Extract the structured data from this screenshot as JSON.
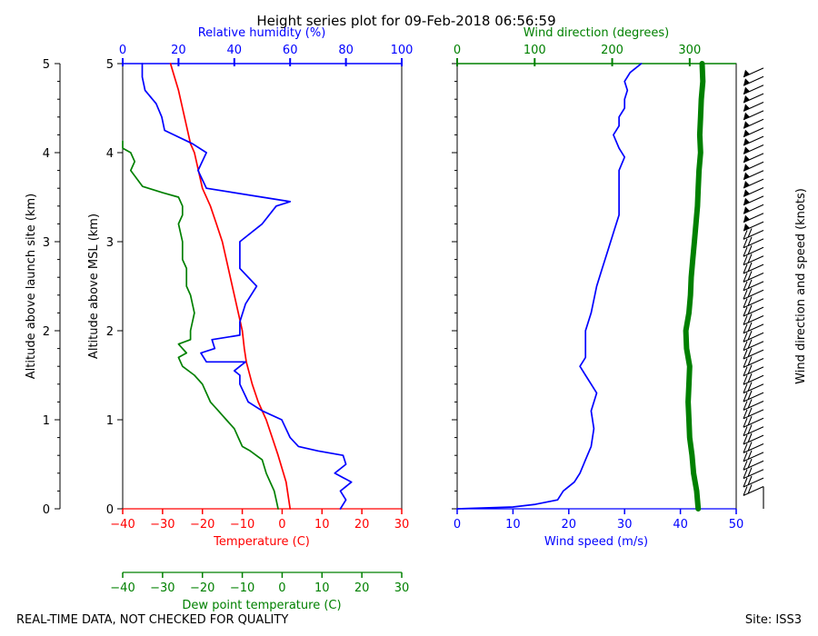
{
  "chart_data": [
    {
      "type": "line",
      "title": "Height series plot for 09-Feb-2018 06:56:59",
      "ylabel_left": "Altitude above launch site (km)",
      "ylabel": "Altitude above MSL (km)",
      "ylim": [
        0,
        5
      ],
      "yticks": [
        "0",
        "1",
        "2",
        "3",
        "4",
        "5"
      ],
      "axes": {
        "temperature": {
          "label": "Temperature (C)",
          "range": [
            -40,
            30
          ],
          "ticks": [
            "−40",
            "−30",
            "−20",
            "−10",
            "0",
            "10",
            "20",
            "30"
          ],
          "color": "#ff0000"
        },
        "dewpoint": {
          "label": "Dew point temperature (C)",
          "range": [
            -40,
            30
          ],
          "ticks": [
            "−40",
            "−30",
            "−20",
            "−10",
            "0",
            "10",
            "20",
            "30"
          ],
          "color": "#008000"
        },
        "rh": {
          "label": "Relative humidity (%)",
          "range": [
            0,
            100
          ],
          "ticks": [
            "0",
            "20",
            "40",
            "60",
            "80",
            "100"
          ],
          "color": "#0000ff"
        }
      },
      "series": [
        {
          "name": "Temperature",
          "axis": "temperature",
          "color": "#ff0000",
          "points": [
            [
              2,
              0
            ],
            [
              1,
              0.3
            ],
            [
              -1,
              0.6
            ],
            [
              -2.5,
              0.8
            ],
            [
              -4,
              1.0
            ],
            [
              -6,
              1.2
            ],
            [
              -7.5,
              1.4
            ],
            [
              -9,
              1.65
            ],
            [
              -9.5,
              1.8
            ],
            [
              -10,
              2.0
            ],
            [
              -11,
              2.2
            ],
            [
              -12,
              2.4
            ],
            [
              -13,
              2.6
            ],
            [
              -14,
              2.8
            ],
            [
              -15,
              3.0
            ],
            [
              -16.5,
              3.2
            ],
            [
              -18,
              3.4
            ],
            [
              -20,
              3.6
            ],
            [
              -21,
              3.8
            ],
            [
              -22,
              4.0
            ],
            [
              -23,
              4.1
            ],
            [
              -24,
              4.3
            ],
            [
              -25,
              4.5
            ],
            [
              -26,
              4.7
            ],
            [
              -27,
              4.85
            ],
            [
              -28,
              5.0
            ]
          ]
        },
        {
          "name": "Dew point",
          "axis": "dewpoint",
          "color": "#008000",
          "points": [
            [
              -1,
              0
            ],
            [
              -1.5,
              0.1
            ],
            [
              -2,
              0.2
            ],
            [
              -3,
              0.3
            ],
            [
              -4,
              0.4
            ],
            [
              -5,
              0.55
            ],
            [
              -8,
              0.65
            ],
            [
              -10,
              0.7
            ],
            [
              -11,
              0.8
            ],
            [
              -12,
              0.9
            ],
            [
              -14,
              1.0
            ],
            [
              -16,
              1.1
            ],
            [
              -18,
              1.2
            ],
            [
              -19,
              1.3
            ],
            [
              -20,
              1.4
            ],
            [
              -22,
              1.5
            ],
            [
              -25,
              1.6
            ],
            [
              -26,
              1.7
            ],
            [
              -24,
              1.75
            ],
            [
              -26,
              1.85
            ],
            [
              -23,
              1.9
            ],
            [
              -23,
              2.0
            ],
            [
              -22,
              2.2
            ],
            [
              -23,
              2.4
            ],
            [
              -24,
              2.5
            ],
            [
              -24,
              2.7
            ],
            [
              -25,
              2.8
            ],
            [
              -25,
              3.0
            ],
            [
              -26,
              3.2
            ],
            [
              -25,
              3.3
            ],
            [
              -25,
              3.4
            ],
            [
              -26,
              3.5
            ],
            [
              -30,
              3.55
            ],
            [
              -35,
              3.62
            ],
            [
              -38,
              3.8
            ],
            [
              -37,
              3.9
            ],
            [
              -38,
              4.0
            ],
            [
              -40,
              4.05
            ],
            [
              -40,
              4.13
            ]
          ]
        },
        {
          "name": "Relative humidity",
          "axis": "rh",
          "color": "#0000ff",
          "points": [
            [
              78,
              0
            ],
            [
              80,
              0.1
            ],
            [
              78,
              0.2
            ],
            [
              82,
              0.3
            ],
            [
              79,
              0.35
            ],
            [
              76,
              0.4
            ],
            [
              80,
              0.5
            ],
            [
              79,
              0.6
            ],
            [
              70,
              0.65
            ],
            [
              63,
              0.7
            ],
            [
              60,
              0.8
            ],
            [
              57,
              1.0
            ],
            [
              50,
              1.1
            ],
            [
              45,
              1.2
            ],
            [
              42,
              1.4
            ],
            [
              42,
              1.5
            ],
            [
              40,
              1.55
            ],
            [
              44,
              1.65
            ],
            [
              30,
              1.65
            ],
            [
              28,
              1.75
            ],
            [
              33,
              1.8
            ],
            [
              32,
              1.9
            ],
            [
              42,
              1.95
            ],
            [
              42,
              2.1
            ],
            [
              44,
              2.3
            ],
            [
              48,
              2.5
            ],
            [
              42,
              2.7
            ],
            [
              42,
              3.0
            ],
            [
              50,
              3.2
            ],
            [
              55,
              3.4
            ],
            [
              60,
              3.45
            ],
            [
              50,
              3.5
            ],
            [
              30,
              3.6
            ],
            [
              27,
              3.8
            ],
            [
              30,
              4.0
            ],
            [
              25,
              4.1
            ],
            [
              15,
              4.25
            ],
            [
              14,
              4.4
            ],
            [
              12,
              4.55
            ],
            [
              8,
              4.7
            ],
            [
              7,
              4.85
            ],
            [
              7,
              5.0
            ]
          ]
        }
      ]
    },
    {
      "type": "line",
      "xlabel_bottom": "Wind speed (m/s)",
      "xlabel_top": "Wind direction (degrees)",
      "ylabel_right": "Wind direction and speed (knots)",
      "ylim": [
        0,
        5
      ],
      "axes": {
        "speed": {
          "label": "Wind speed (m/s)",
          "range": [
            0,
            50
          ],
          "ticks": [
            "0",
            "10",
            "20",
            "30",
            "40",
            "50"
          ],
          "color": "#0000ff"
        },
        "direction": {
          "label": "Wind direction (degrees)",
          "range": [
            0,
            360
          ],
          "ticks": [
            "0",
            "100",
            "200",
            "300"
          ],
          "color": "#008000"
        }
      },
      "series": [
        {
          "name": "Wind speed",
          "axis": "speed",
          "color": "#0000ff",
          "points": [
            [
              0,
              0
            ],
            [
              10,
              0.02
            ],
            [
              14,
              0.05
            ],
            [
              18,
              0.1
            ],
            [
              19,
              0.2
            ],
            [
              21,
              0.3
            ],
            [
              22,
              0.4
            ],
            [
              23,
              0.55
            ],
            [
              24,
              0.7
            ],
            [
              24.5,
              0.9
            ],
            [
              24,
              1.1
            ],
            [
              25,
              1.3
            ],
            [
              24,
              1.4
            ],
            [
              23,
              1.5
            ],
            [
              22,
              1.6
            ],
            [
              23,
              1.7
            ],
            [
              23,
              2.0
            ],
            [
              24,
              2.2
            ],
            [
              25,
              2.5
            ],
            [
              26,
              2.7
            ],
            [
              27,
              2.9
            ],
            [
              28,
              3.1
            ],
            [
              29,
              3.3
            ],
            [
              29,
              3.6
            ],
            [
              29,
              3.8
            ],
            [
              30,
              3.95
            ],
            [
              29,
              4.05
            ],
            [
              28,
              4.2
            ],
            [
              29,
              4.3
            ],
            [
              29,
              4.4
            ],
            [
              30,
              4.5
            ],
            [
              30,
              4.6
            ],
            [
              30.5,
              4.7
            ],
            [
              30,
              4.8
            ],
            [
              31,
              4.9
            ],
            [
              33,
              5.0
            ]
          ]
        },
        {
          "name": "Wind direction",
          "axis": "direction",
          "color": "#008000",
          "points": [
            [
              311,
              0
            ],
            [
              309,
              0.2
            ],
            [
              305,
              0.4
            ],
            [
              303,
              0.6
            ],
            [
              300,
              0.8
            ],
            [
              299,
              1.0
            ],
            [
              298,
              1.2
            ],
            [
              299,
              1.4
            ],
            [
              300,
              1.6
            ],
            [
              296,
              1.8
            ],
            [
              295,
              2.0
            ],
            [
              299,
              2.2
            ],
            [
              301,
              2.4
            ],
            [
              302,
              2.6
            ],
            [
              304,
              2.8
            ],
            [
              306,
              3.0
            ],
            [
              308,
              3.2
            ],
            [
              310,
              3.4
            ],
            [
              311,
              3.6
            ],
            [
              312,
              3.8
            ],
            [
              314,
              4.0
            ],
            [
              313,
              4.2
            ],
            [
              314,
              4.4
            ],
            [
              315,
              4.6
            ],
            [
              317,
              4.8
            ],
            [
              316,
              5.0
            ]
          ]
        }
      ],
      "barbs": {
        "count": 50,
        "description": "wind barbs, knots"
      }
    }
  ],
  "footer": {
    "left": "REAL-TIME DATA, NOT CHECKED FOR QUALITY",
    "right": "Site: ISS3"
  }
}
